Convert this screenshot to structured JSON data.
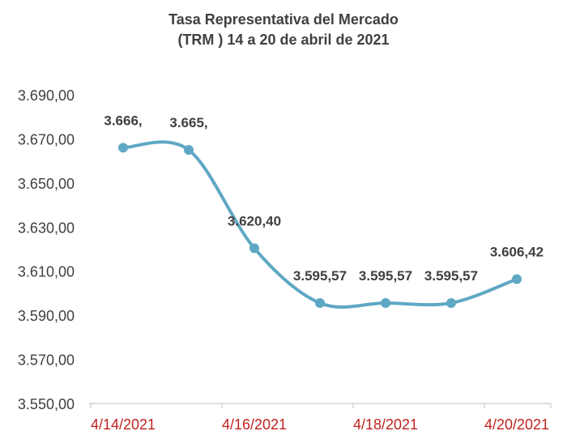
{
  "chart_data": {
    "type": "line",
    "title_lines": [
      "Tasa Representativa del Mercado",
      "(TRM )  14 a 20 de abril de 2021"
    ],
    "categories": [
      "4/14/2021",
      "4/15/2021",
      "4/16/2021",
      "4/17/2021",
      "4/18/2021",
      "4/19/2021",
      "4/20/2021"
    ],
    "series": [
      {
        "values": [
          3666.0,
          3665.0,
          3620.4,
          3595.57,
          3595.57,
          3595.57,
          3606.42
        ]
      }
    ],
    "data_labels": [
      "3.666,",
      "3.665,",
      "3.620,40",
      "3.595,57",
      "3.595,57",
      "3.595,57",
      "3.606,42"
    ],
    "x_tick_labels": [
      "4/14/2021",
      "4/16/2021",
      "4/18/2021",
      "4/20/2021"
    ],
    "y_tick_labels": [
      "3.550,00",
      "3.570,00",
      "3.590,00",
      "3.610,00",
      "3.630,00",
      "3.650,00",
      "3.670,00",
      "3.690,00"
    ],
    "ylim": [
      3550,
      3690
    ],
    "y_tick_step": 20,
    "grid": false,
    "smooth": true,
    "colors": {
      "line": "#5fa8c4",
      "marker": "#5fa8c4",
      "x_tick_text": "#c0221f",
      "axis": "#bfbfbf",
      "text": "#404040"
    }
  }
}
